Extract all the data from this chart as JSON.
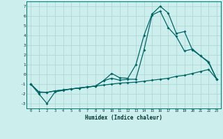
{
  "xlabel": "Humidex (Indice chaleur)",
  "xlim": [
    -0.5,
    23.5
  ],
  "ylim": [
    -3.5,
    7.5
  ],
  "bg_color": "#cceeed",
  "grid_color": "#aad4d2",
  "line_color": "#006666",
  "line1_x": [
    0,
    1,
    2,
    3,
    4,
    5,
    6,
    7,
    8,
    9,
    10,
    11,
    12,
    13,
    14,
    15,
    16,
    17,
    18,
    19,
    20,
    21,
    22,
    23
  ],
  "line1_y": [
    -1.0,
    -1.8,
    -1.85,
    -1.7,
    -1.6,
    -1.5,
    -1.4,
    -1.3,
    -1.2,
    -1.1,
    -1.0,
    -0.9,
    -0.85,
    -0.8,
    -0.7,
    -0.6,
    -0.5,
    -0.4,
    -0.2,
    -0.1,
    0.1,
    0.3,
    0.5,
    -0.5
  ],
  "line2_x": [
    0,
    1,
    2,
    3,
    4,
    5,
    6,
    7,
    8,
    9,
    10,
    11,
    12,
    13,
    14,
    15,
    16,
    17,
    18,
    19,
    20,
    21,
    22,
    23
  ],
  "line2_y": [
    -1.0,
    -1.85,
    -1.85,
    -1.7,
    -1.6,
    -1.5,
    -1.4,
    -1.3,
    -1.2,
    -0.65,
    -0.4,
    -0.6,
    -0.5,
    -0.5,
    2.5,
    6.1,
    6.5,
    4.8,
    3.9,
    2.4,
    2.6,
    1.9,
    1.3,
    -0.5
  ],
  "line3_x": [
    0,
    1,
    2,
    3,
    4,
    5,
    6,
    7,
    8,
    9,
    10,
    11,
    12,
    13,
    14,
    15,
    16,
    17,
    18,
    19,
    20,
    21,
    22,
    23
  ],
  "line3_y": [
    -1.0,
    -2.0,
    -3.0,
    -1.8,
    -1.65,
    -1.5,
    -1.4,
    -1.3,
    -1.2,
    -0.65,
    0.1,
    -0.35,
    -0.4,
    1.0,
    4.0,
    6.2,
    7.0,
    6.3,
    4.2,
    4.4,
    2.5,
    1.9,
    1.2,
    -0.5
  ],
  "yticks": [
    -3,
    -2,
    -1,
    0,
    1,
    2,
    3,
    4,
    5,
    6,
    7
  ],
  "xticks": [
    0,
    1,
    2,
    3,
    4,
    5,
    6,
    7,
    8,
    9,
    10,
    11,
    12,
    13,
    14,
    15,
    16,
    17,
    18,
    19,
    20,
    21,
    22,
    23
  ]
}
